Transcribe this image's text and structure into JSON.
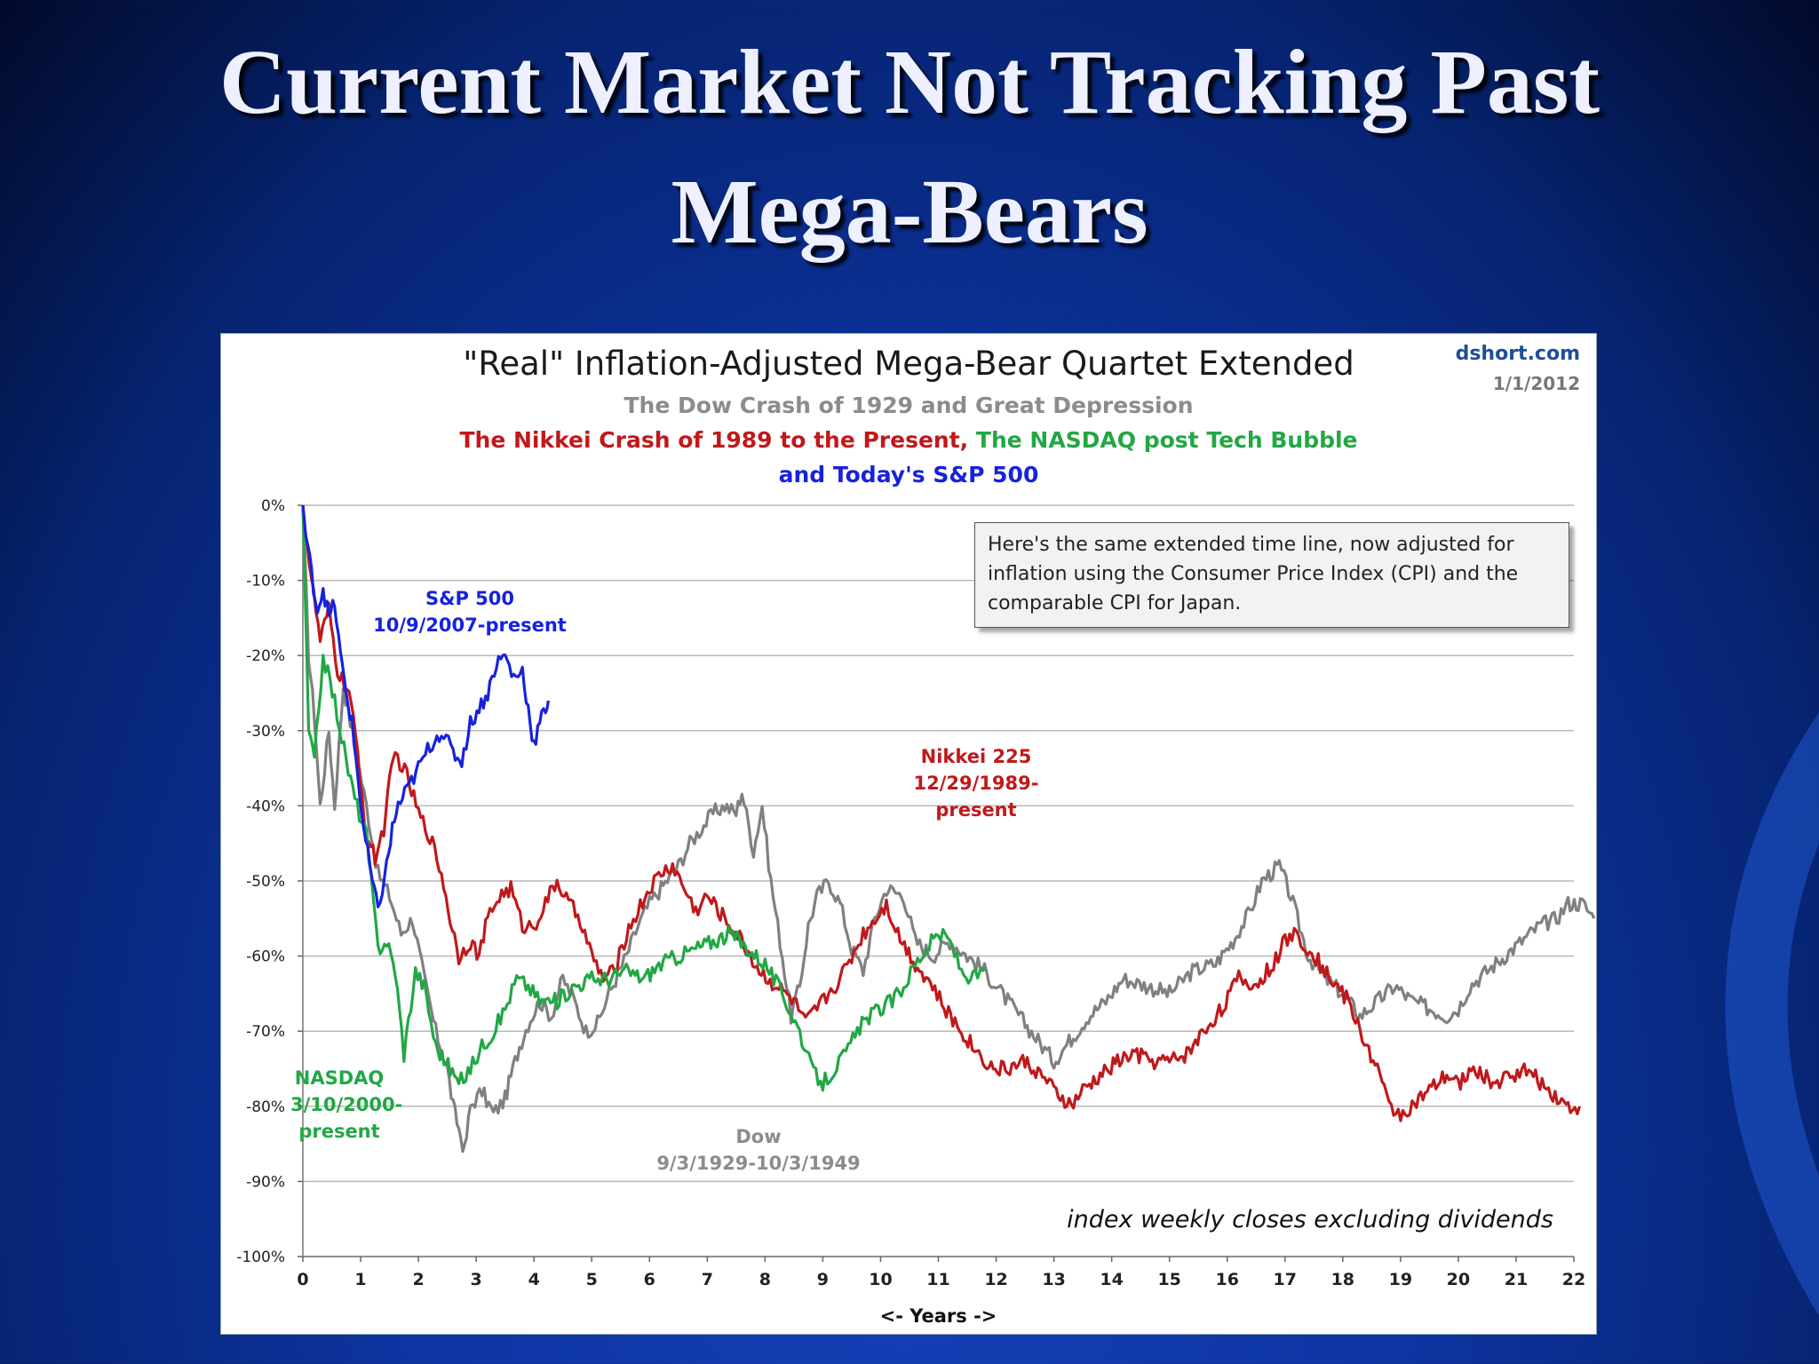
{
  "slide": {
    "title_line1": "Current Market Not Tracking Past",
    "title_line2": "Mega-Bears"
  },
  "chart_data": {
    "type": "line",
    "title": "\"Real\" Inflation-Adjusted Mega-Bear Quartet Extended",
    "subtitle_dow": "The Dow Crash of 1929 and Great Depression",
    "subtitle_nikkei": "The Nikkei Crash of 1989 to the Present,",
    "subtitle_nasdaq": " The NASDAQ post Tech Bubble",
    "subtitle_sp": "and Today's S&P 500",
    "source": "dshort.com",
    "date": "1/1/2012",
    "xlabel": "<- Years ->",
    "xlim": [
      0,
      22
    ],
    "ylim": [
      -100,
      0
    ],
    "x_ticks": [
      "0",
      "1",
      "2",
      "3",
      "4",
      "5",
      "6",
      "7",
      "8",
      "9",
      "10",
      "11",
      "12",
      "13",
      "14",
      "15",
      "16",
      "17",
      "18",
      "19",
      "20",
      "21",
      "22"
    ],
    "y_ticks": [
      "0%",
      "-10%",
      "-20%",
      "-30%",
      "-40%",
      "-50%",
      "-60%",
      "-70%",
      "-80%",
      "-90%",
      "-100%"
    ],
    "grid": true,
    "note": "Here's the same extended time line, now adjusted for inflation using the Consumer Price Index (CPI) and the comparable CPI for Japan.",
    "footnote": "index weekly closes excluding dividends",
    "series": [
      {
        "name": "Dow",
        "label_lines": [
          "Dow",
          "9/3/1929-10/3/1949"
        ],
        "color": "#808080",
        "points": [
          [
            0,
            0
          ],
          [
            0.1,
            -20
          ],
          [
            0.2,
            -28
          ],
          [
            0.3,
            -40
          ],
          [
            0.45,
            -30
          ],
          [
            0.55,
            -40
          ],
          [
            0.7,
            -24
          ],
          [
            0.9,
            -32
          ],
          [
            1.1,
            -40
          ],
          [
            1.3,
            -49
          ],
          [
            1.5,
            -52
          ],
          [
            1.7,
            -57
          ],
          [
            1.9,
            -55
          ],
          [
            2.1,
            -63
          ],
          [
            2.3,
            -70
          ],
          [
            2.5,
            -75
          ],
          [
            2.6,
            -80
          ],
          [
            2.7,
            -83
          ],
          [
            2.8,
            -86
          ],
          [
            2.9,
            -80
          ],
          [
            3.1,
            -78
          ],
          [
            3.3,
            -81
          ],
          [
            3.5,
            -79
          ],
          [
            3.6,
            -76
          ],
          [
            3.75,
            -72
          ],
          [
            3.9,
            -69
          ],
          [
            4.1,
            -66
          ],
          [
            4.3,
            -68
          ],
          [
            4.5,
            -63
          ],
          [
            4.7,
            -66
          ],
          [
            4.9,
            -70
          ],
          [
            5.1,
            -69
          ],
          [
            5.3,
            -65
          ],
          [
            5.6,
            -60
          ],
          [
            5.8,
            -56
          ],
          [
            6.0,
            -53
          ],
          [
            6.2,
            -51
          ],
          [
            6.5,
            -48
          ],
          [
            6.7,
            -45
          ],
          [
            6.9,
            -43
          ],
          [
            7.1,
            -41
          ],
          [
            7.3,
            -40
          ],
          [
            7.5,
            -41
          ],
          [
            7.6,
            -38
          ],
          [
            7.8,
            -46
          ],
          [
            7.95,
            -40
          ],
          [
            8.1,
            -50
          ],
          [
            8.3,
            -60
          ],
          [
            8.45,
            -68
          ],
          [
            8.6,
            -64
          ],
          [
            8.75,
            -56
          ],
          [
            8.9,
            -52
          ],
          [
            9.1,
            -50
          ],
          [
            9.3,
            -53
          ],
          [
            9.5,
            -59
          ],
          [
            9.7,
            -62
          ],
          [
            9.9,
            -55
          ],
          [
            10.1,
            -51
          ],
          [
            10.4,
            -52
          ],
          [
            10.6,
            -58
          ],
          [
            10.9,
            -60
          ],
          [
            11.2,
            -58
          ],
          [
            11.5,
            -60
          ],
          [
            11.8,
            -62
          ],
          [
            12.2,
            -66
          ],
          [
            12.5,
            -69
          ],
          [
            12.8,
            -72
          ],
          [
            13.0,
            -74
          ],
          [
            13.3,
            -71
          ],
          [
            13.6,
            -68
          ],
          [
            13.9,
            -66
          ],
          [
            14.2,
            -63
          ],
          [
            14.6,
            -64
          ],
          [
            15.0,
            -65
          ],
          [
            15.4,
            -62
          ],
          [
            15.8,
            -61
          ],
          [
            16.1,
            -58
          ],
          [
            16.4,
            -54
          ],
          [
            16.6,
            -50
          ],
          [
            16.9,
            -48
          ],
          [
            17.1,
            -52
          ],
          [
            17.4,
            -60
          ],
          [
            17.7,
            -63
          ],
          [
            18.0,
            -65
          ],
          [
            18.3,
            -68
          ],
          [
            18.6,
            -66
          ],
          [
            18.9,
            -64
          ],
          [
            19.2,
            -66
          ],
          [
            19.5,
            -67
          ],
          [
            19.8,
            -68
          ],
          [
            20.0,
            -67
          ],
          [
            20.2,
            -64
          ],
          [
            20.5,
            -62
          ],
          [
            20.8,
            -60
          ],
          [
            21.1,
            -58
          ],
          [
            21.4,
            -56
          ],
          [
            21.7,
            -55
          ],
          [
            21.9,
            -53
          ],
          [
            22.15,
            -53
          ],
          [
            22.35,
            -55
          ]
        ]
      },
      {
        "name": "Nikkei 225",
        "label_lines": [
          "Nikkei 225",
          "12/29/1989-present"
        ],
        "color": "#c0191b",
        "points": [
          [
            0,
            0
          ],
          [
            0.15,
            -10
          ],
          [
            0.3,
            -18
          ],
          [
            0.45,
            -14
          ],
          [
            0.6,
            -22
          ],
          [
            0.8,
            -25
          ],
          [
            0.95,
            -33
          ],
          [
            1.1,
            -44
          ],
          [
            1.25,
            -47
          ],
          [
            1.4,
            -43
          ],
          [
            1.5,
            -37
          ],
          [
            1.6,
            -33
          ],
          [
            1.8,
            -36
          ],
          [
            2.0,
            -41
          ],
          [
            2.2,
            -44
          ],
          [
            2.4,
            -49
          ],
          [
            2.55,
            -55
          ],
          [
            2.7,
            -60
          ],
          [
            2.9,
            -58
          ],
          [
            3.05,
            -60
          ],
          [
            3.2,
            -55
          ],
          [
            3.4,
            -52
          ],
          [
            3.6,
            -51
          ],
          [
            3.8,
            -56
          ],
          [
            4.0,
            -56
          ],
          [
            4.2,
            -53
          ],
          [
            4.4,
            -50
          ],
          [
            4.6,
            -53
          ],
          [
            4.8,
            -55
          ],
          [
            5.0,
            -60
          ],
          [
            5.2,
            -63
          ],
          [
            5.4,
            -62
          ],
          [
            5.6,
            -57
          ],
          [
            5.8,
            -54
          ],
          [
            6.0,
            -51
          ],
          [
            6.2,
            -49
          ],
          [
            6.4,
            -48
          ],
          [
            6.6,
            -51
          ],
          [
            6.8,
            -54
          ],
          [
            7.0,
            -52
          ],
          [
            7.3,
            -55
          ],
          [
            7.6,
            -58
          ],
          [
            7.9,
            -62
          ],
          [
            8.2,
            -64
          ],
          [
            8.5,
            -66
          ],
          [
            8.7,
            -69
          ],
          [
            8.9,
            -67
          ],
          [
            9.1,
            -65
          ],
          [
            9.3,
            -63
          ],
          [
            9.5,
            -60
          ],
          [
            9.7,
            -57
          ],
          [
            9.9,
            -55
          ],
          [
            10.1,
            -53
          ],
          [
            10.3,
            -57
          ],
          [
            10.6,
            -61
          ],
          [
            10.9,
            -64
          ],
          [
            11.1,
            -67
          ],
          [
            11.4,
            -70
          ],
          [
            11.7,
            -73
          ],
          [
            11.95,
            -75
          ],
          [
            12.2,
            -75
          ],
          [
            12.5,
            -74
          ],
          [
            12.8,
            -76
          ],
          [
            13.0,
            -78
          ],
          [
            13.3,
            -80
          ],
          [
            13.5,
            -78
          ],
          [
            13.8,
            -76
          ],
          [
            14.1,
            -74
          ],
          [
            14.4,
            -73
          ],
          [
            14.7,
            -74
          ],
          [
            15.0,
            -74
          ],
          [
            15.3,
            -73
          ],
          [
            15.6,
            -70
          ],
          [
            15.9,
            -67
          ],
          [
            16.2,
            -63
          ],
          [
            16.5,
            -64
          ],
          [
            16.8,
            -61
          ],
          [
            17.0,
            -58
          ],
          [
            17.2,
            -57
          ],
          [
            17.5,
            -60
          ],
          [
            17.8,
            -63
          ],
          [
            18.1,
            -66
          ],
          [
            18.3,
            -70
          ],
          [
            18.6,
            -75
          ],
          [
            18.8,
            -80
          ],
          [
            19.0,
            -81
          ],
          [
            19.2,
            -80
          ],
          [
            19.5,
            -78
          ],
          [
            19.8,
            -76
          ],
          [
            20.0,
            -77
          ],
          [
            20.3,
            -75
          ],
          [
            20.6,
            -77
          ],
          [
            20.9,
            -76
          ],
          [
            21.1,
            -75
          ],
          [
            21.3,
            -76
          ],
          [
            21.6,
            -78
          ],
          [
            21.9,
            -80
          ],
          [
            22.1,
            -80
          ]
        ]
      },
      {
        "name": "NASDAQ",
        "label_lines": [
          "NASDAQ",
          "3/10/2000-",
          "present"
        ],
        "color": "#22a745",
        "points": [
          [
            0,
            0
          ],
          [
            0.1,
            -30
          ],
          [
            0.2,
            -34
          ],
          [
            0.35,
            -20
          ],
          [
            0.55,
            -26
          ],
          [
            0.75,
            -34
          ],
          [
            0.9,
            -39
          ],
          [
            1.1,
            -44
          ],
          [
            1.3,
            -59
          ],
          [
            1.45,
            -58
          ],
          [
            1.6,
            -62
          ],
          [
            1.75,
            -73
          ],
          [
            1.95,
            -62
          ],
          [
            2.1,
            -64
          ],
          [
            2.3,
            -72
          ],
          [
            2.55,
            -75
          ],
          [
            2.7,
            -77
          ],
          [
            2.9,
            -75
          ],
          [
            3.1,
            -72
          ],
          [
            3.3,
            -70
          ],
          [
            3.5,
            -67
          ],
          [
            3.7,
            -63
          ],
          [
            3.9,
            -64
          ],
          [
            4.1,
            -66
          ],
          [
            4.4,
            -66
          ],
          [
            4.7,
            -64
          ],
          [
            5.0,
            -63
          ],
          [
            5.3,
            -63
          ],
          [
            5.6,
            -62
          ],
          [
            5.9,
            -63
          ],
          [
            6.2,
            -61
          ],
          [
            6.5,
            -60
          ],
          [
            6.8,
            -59
          ],
          [
            7.1,
            -58
          ],
          [
            7.4,
            -57
          ],
          [
            7.7,
            -59
          ],
          [
            8.0,
            -61
          ],
          [
            8.3,
            -65
          ],
          [
            8.6,
            -70
          ],
          [
            8.8,
            -75
          ],
          [
            9.0,
            -77
          ],
          [
            9.2,
            -75
          ],
          [
            9.4,
            -73
          ],
          [
            9.6,
            -70
          ],
          [
            9.8,
            -68
          ],
          [
            10.0,
            -67
          ],
          [
            10.2,
            -66
          ],
          [
            10.4,
            -64
          ],
          [
            10.6,
            -61
          ],
          [
            10.8,
            -59
          ],
          [
            11.0,
            -57
          ],
          [
            11.2,
            -58
          ],
          [
            11.4,
            -62
          ],
          [
            11.6,
            -63
          ],
          [
            11.8,
            -62
          ]
        ]
      },
      {
        "name": "S&P 500",
        "label_lines": [
          "S&P 500",
          "10/9/2007-present"
        ],
        "color": "#1722dc",
        "points": [
          [
            0,
            0
          ],
          [
            0.05,
            -4
          ],
          [
            0.15,
            -9
          ],
          [
            0.25,
            -14
          ],
          [
            0.35,
            -11
          ],
          [
            0.45,
            -15
          ],
          [
            0.55,
            -13
          ],
          [
            0.65,
            -20
          ],
          [
            0.75,
            -25
          ],
          [
            0.85,
            -29
          ],
          [
            0.95,
            -36
          ],
          [
            1.05,
            -43
          ],
          [
            1.2,
            -50
          ],
          [
            1.3,
            -54
          ],
          [
            1.45,
            -48
          ],
          [
            1.55,
            -43
          ],
          [
            1.65,
            -40
          ],
          [
            1.8,
            -38
          ],
          [
            2.0,
            -35
          ],
          [
            2.2,
            -32
          ],
          [
            2.4,
            -30
          ],
          [
            2.6,
            -33
          ],
          [
            2.75,
            -34
          ],
          [
            2.9,
            -29
          ],
          [
            3.05,
            -27
          ],
          [
            3.2,
            -25
          ],
          [
            3.35,
            -21
          ],
          [
            3.5,
            -20
          ],
          [
            3.65,
            -23
          ],
          [
            3.8,
            -22
          ],
          [
            3.9,
            -27
          ],
          [
            4.0,
            -32
          ],
          [
            4.1,
            -29
          ],
          [
            4.2,
            -27
          ],
          [
            4.25,
            -26
          ]
        ]
      }
    ]
  }
}
